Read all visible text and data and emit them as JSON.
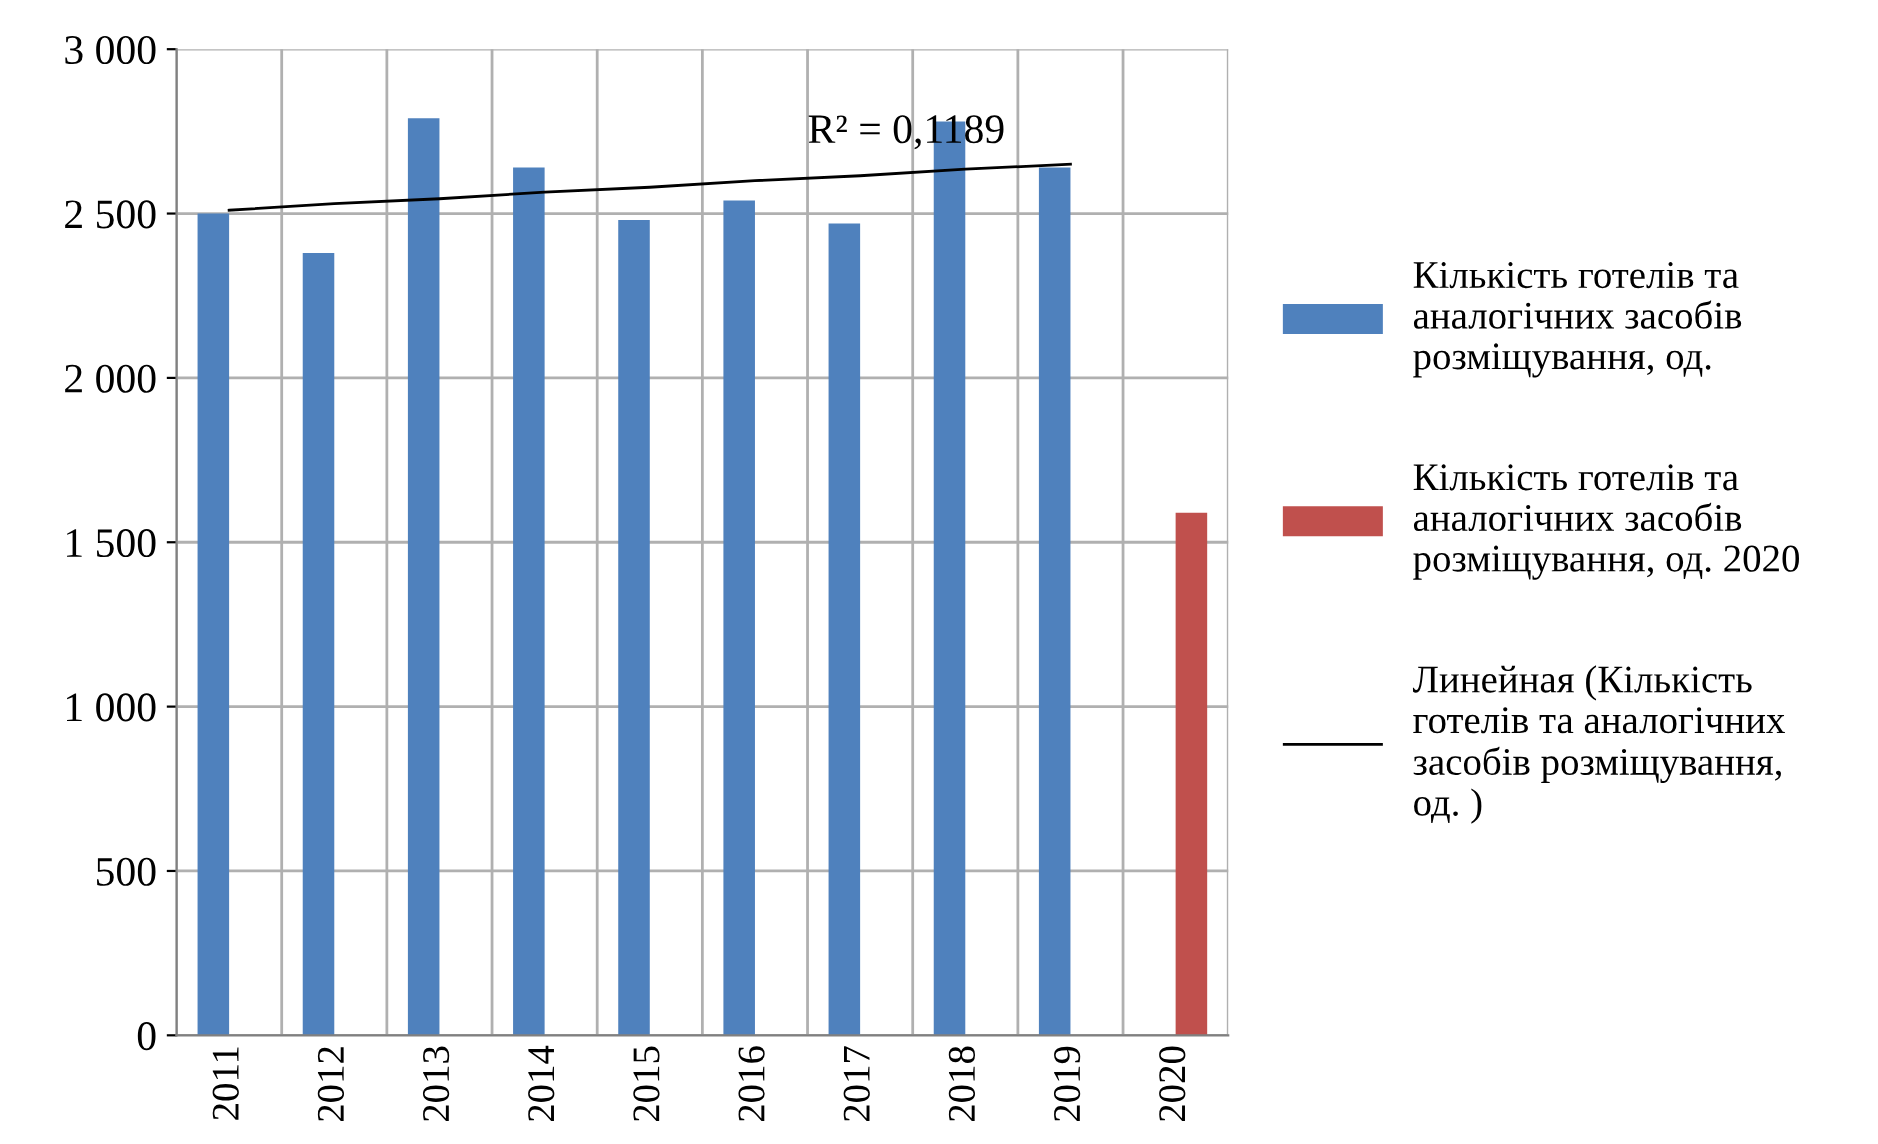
{
  "chart_data": {
    "type": "bar",
    "categories": [
      "2011",
      "2012",
      "2013",
      "2014",
      "2015",
      "2016",
      "2017",
      "2018",
      "2019",
      "2020"
    ],
    "series": [
      {
        "name": "Кількість готелів та аналогічних засобів розміщування, од.",
        "color": "#4f81bd",
        "values": [
          2500,
          2380,
          2790,
          2640,
          2480,
          2540,
          2470,
          2780,
          2640,
          null
        ]
      },
      {
        "name": "Кількість готелів та аналогічних засобів розміщування, од. 2020",
        "color": "#c0504d",
        "values": [
          null,
          null,
          null,
          null,
          null,
          null,
          null,
          null,
          null,
          1590
        ]
      },
      {
        "name": "Линейная (Кількість готелів та аналогічних засобів розміщування, од. )",
        "type": "line",
        "color": "#000000",
        "values": [
          2510,
          2530,
          2545,
          2565,
          2580,
          2600,
          2615,
          2635,
          2650,
          null
        ]
      }
    ],
    "ylim": [
      0,
      3000
    ],
    "yticks": [
      {
        "value": 0,
        "label": "0"
      },
      {
        "value": 500,
        "label": "500"
      },
      {
        "value": 1000,
        "label": "1 000"
      },
      {
        "value": 1500,
        "label": "1 500"
      },
      {
        "value": 2000,
        "label": "2 000"
      },
      {
        "value": 2500,
        "label": "2 500"
      },
      {
        "value": 3000,
        "label": "3 000"
      }
    ],
    "grid": true,
    "legend": "right",
    "annotations": [
      "R² = 0,1189"
    ]
  }
}
